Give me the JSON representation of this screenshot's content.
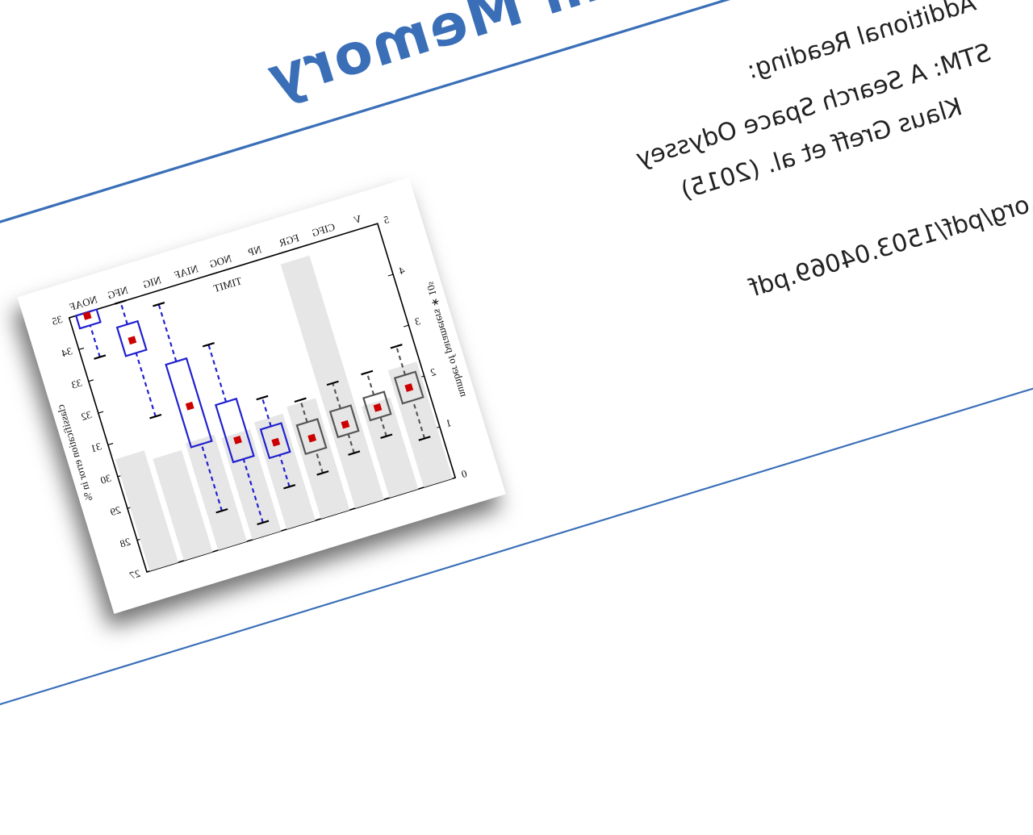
{
  "slide": {
    "title": "Term Memory",
    "reading_heading": "Additional Reading:",
    "reading_title": "STM: A Search Space Odyssey",
    "reading_authors": "Klaus Greff et al. (2015)",
    "reading_link": ".org/pdf/1503.04069.pdf"
  },
  "chart_data": {
    "type": "box",
    "title": "TIMIT",
    "categories": [
      "V",
      "CIFG",
      "FGR",
      "NP",
      "NOG",
      "NIAF",
      "NIG",
      "NFG",
      "NOAF"
    ],
    "ylabel": "number of parameters ∗ 10⁵",
    "y2label": "classification error in %",
    "ylim": [
      0,
      5
    ],
    "yticks": [
      0,
      1,
      2,
      3,
      4,
      5
    ],
    "y2lim": [
      27,
      35
    ],
    "y2ticks": [
      27,
      28,
      29,
      30,
      31,
      32,
      33,
      34,
      35
    ],
    "bars": {
      "color": "#e6e6e6",
      "values": [
        2.3,
        1.8,
        4.8,
        2.2,
        2.1,
        2.0,
        2.1,
        2.0,
        2.2
      ]
    },
    "boxes": {
      "axis": "y2",
      "colors": [
        "#555555",
        "#555555",
        "#555555",
        "#555555",
        "#1f1fd0",
        "#1f1fd0",
        "#1f1fd0",
        "#1f1fd0",
        "#1f1fd0"
      ],
      "median_color": "#cc0000",
      "whisker_low": [
        28.4,
        28.8,
        28.6,
        28.3,
        28.2,
        27.4,
        28.1,
        31.4,
        33.6
      ],
      "q1": [
        29.6,
        29.4,
        29.2,
        29.0,
        29.2,
        29.4,
        30.2,
        33.4,
        34.6
      ],
      "median": [
        30.0,
        29.7,
        29.5,
        29.4,
        29.6,
        30.0,
        31.4,
        33.8,
        34.9
      ],
      "q3": [
        30.4,
        30.1,
        30.0,
        29.9,
        30.1,
        31.2,
        32.8,
        34.3,
        35.0
      ],
      "whisker_high": [
        31.3,
        30.8,
        30.8,
        30.6,
        31.0,
        33.0,
        34.6,
        35.0,
        35.0
      ]
    }
  }
}
